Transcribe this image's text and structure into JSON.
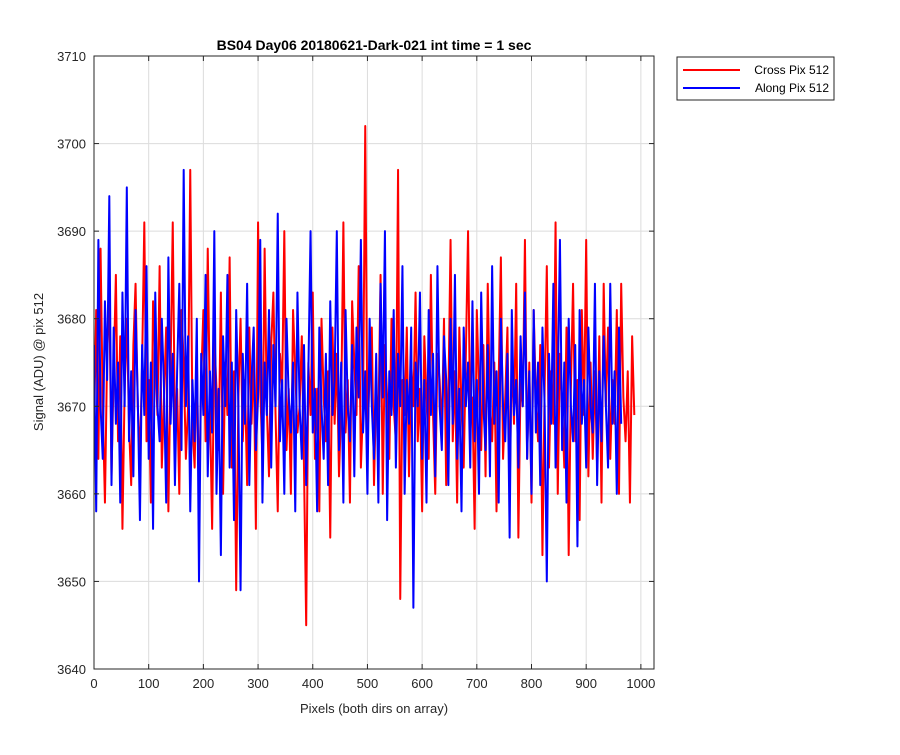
{
  "chart_data": {
    "type": "line",
    "title": "BS04 Day06 20180621-Dark-021 int time = 1 sec",
    "xlabel": "Pixels (both dirs on array)",
    "ylabel": "Signal (ADU) @ pix 512",
    "xlim": [
      0,
      1024
    ],
    "ylim": [
      3640,
      3710
    ],
    "xticks": [
      0,
      100,
      200,
      300,
      400,
      500,
      600,
      700,
      800,
      900,
      1000
    ],
    "yticks": [
      3640,
      3650,
      3660,
      3670,
      3680,
      3690,
      3700,
      3710
    ],
    "grid": true,
    "legend_position": "outside-top-right",
    "series": [
      {
        "name": "Cross Pix 512",
        "color": "#ff0000",
        "mean": 3672,
        "range": [
          3645,
          3702
        ],
        "x_step": 4,
        "values": [
          3667,
          3681,
          3664,
          3688,
          3670,
          3659,
          3676,
          3683,
          3662,
          3674,
          3685,
          3666,
          3678,
          3656,
          3672,
          3680,
          3668,
          3661,
          3677,
          3684,
          3670,
          3664,
          3675,
          3691,
          3666,
          3673,
          3659,
          3682,
          3676,
          3669,
          3686,
          3663,
          3671,
          3679,
          3658,
          3674,
          3691,
          3667,
          3672,
          3660,
          3681,
          3675,
          3664,
          3670,
          3697,
          3668,
          3663,
          3676,
          3659,
          3673,
          3681,
          3666,
          3688,
          3670,
          3656,
          3678,
          3672,
          3665,
          3683,
          3660,
          3675,
          3669,
          3687,
          3663,
          3674,
          3649,
          3671,
          3680,
          3666,
          3673,
          3661,
          3679,
          3668,
          3676,
          3656,
          3691,
          3672,
          3664,
          3688,
          3670,
          3662,
          3677,
          3683,
          3669,
          3658,
          3676,
          3672,
          3690,
          3665,
          3672,
          3660,
          3681,
          3674,
          3667,
          3670,
          3678,
          3663,
          3645,
          3675,
          3669,
          3683,
          3664,
          3672,
          3658,
          3680,
          3671,
          3666,
          3674,
          3655,
          3679,
          3668,
          3676,
          3662,
          3670,
          3691,
          3667,
          3673,
          3659,
          3682,
          3675,
          3669,
          3686,
          3663,
          3670,
          3702,
          3666,
          3674,
          3679,
          3661,
          3672,
          3668,
          3685,
          3660,
          3677,
          3671,
          3664,
          3680,
          3670,
          3666,
          3697,
          3648,
          3673,
          3669,
          3679,
          3662,
          3675,
          3670,
          3683,
          3666,
          3672,
          3658,
          3678,
          3671,
          3664,
          3685,
          3669,
          3660,
          3676,
          3673,
          3667,
          3680,
          3661,
          3671,
          3689,
          3666,
          3674,
          3659,
          3679,
          3670,
          3663,
          3676,
          3690,
          3667,
          3671,
          3656,
          3681,
          3672,
          3665,
          3677,
          3662,
          3684,
          3670,
          3666,
          3675,
          3658,
          3673,
          3687,
          3664,
          3671,
          3679,
          3660,
          3676,
          3668,
          3684,
          3655,
          3673,
          3670,
          3689,
          3664,
          3675,
          3659,
          3681,
          3671,
          3666,
          3677,
          3653,
          3672,
          3686,
          3663,
          3674,
          3668,
          3691,
          3660,
          3676,
          3670,
          3663,
          3679,
          3653,
          3672,
          3684,
          3666,
          3673,
          3657,
          3681,
          3669,
          3689,
          3662,
          3675,
          3664,
          3674,
          3663,
          3678,
          3659,
          3684,
          3670,
          3679,
          3664,
          3673,
          3668,
          3681,
          3660,
          3684,
          3671,
          3666,
          3674,
          3659,
          3678,
          3669
        ]
      },
      {
        "name": "Along Pix 512",
        "color": "#0000ff",
        "mean": 3672,
        "range": [
          3647,
          3697
        ],
        "x_step": 4,
        "values": [
          3677,
          3658,
          3689,
          3670,
          3664,
          3682,
          3673,
          3694,
          3661,
          3679,
          3668,
          3675,
          3659,
          3683,
          3670,
          3695,
          3666,
          3674,
          3662,
          3681,
          3671,
          3657,
          3677,
          3669,
          3686,
          3664,
          3675,
          3656,
          3683,
          3670,
          3666,
          3680,
          3672,
          3659,
          3687,
          3668,
          3676,
          3661,
          3674,
          3684,
          3665,
          3697,
          3670,
          3678,
          3658,
          3673,
          3666,
          3680,
          3650,
          3676,
          3669,
          3685,
          3662,
          3674,
          3667,
          3690,
          3660,
          3672,
          3653,
          3678,
          3670,
          3685,
          3663,
          3675,
          3657,
          3681,
          3670,
          3649,
          3676,
          3668,
          3684,
          3661,
          3673,
          3679,
          3665,
          3671,
          3689,
          3659,
          3675,
          3669,
          3681,
          3663,
          3677,
          3670,
          3692,
          3666,
          3673,
          3660,
          3680,
          3671,
          3667,
          3675,
          3658,
          3683,
          3670,
          3664,
          3677,
          3661,
          3674,
          3690,
          3667,
          3672,
          3658,
          3679,
          3670,
          3664,
          3676,
          3661,
          3682,
          3669,
          3673,
          3690,
          3665,
          3675,
          3659,
          3681,
          3670,
          3666,
          3677,
          3662,
          3679,
          3671,
          3689,
          3667,
          3674,
          3660,
          3680,
          3670,
          3664,
          3676,
          3659,
          3684,
          3671,
          3690,
          3657,
          3674,
          3669,
          3681,
          3663,
          3676,
          3670,
          3686,
          3660,
          3673,
          3668,
          3679,
          3647,
          3675,
          3670,
          3683,
          3664,
          3673,
          3659,
          3681,
          3669,
          3676,
          3662,
          3686,
          3670,
          3665,
          3678,
          3673,
          3661,
          3680,
          3668,
          3685,
          3664,
          3672,
          3658,
          3679,
          3670,
          3675,
          3663,
          3682,
          3666,
          3673,
          3660,
          3683,
          3670,
          3665,
          3677,
          3662,
          3686,
          3668,
          3674,
          3659,
          3680,
          3670,
          3666,
          3676,
          3655,
          3681,
          3669,
          3673,
          3663,
          3678,
          3670,
          3683,
          3664,
          3674,
          3660,
          3681,
          3667,
          3675,
          3661,
          3679,
          3670,
          3650,
          3676,
          3668,
          3684,
          3663,
          3672,
          3689,
          3665,
          3675,
          3659,
          3680,
          3670,
          3666,
          3677,
          3654,
          3681,
          3668,
          3673,
          3663,
          3679,
          3670,
          3667,
          3684,
          3661,
          3674,
          3666,
          3678,
          3670,
          3663,
          3684,
          3668,
          3674,
          3660,
          3679,
          3668
        ]
      }
    ]
  }
}
